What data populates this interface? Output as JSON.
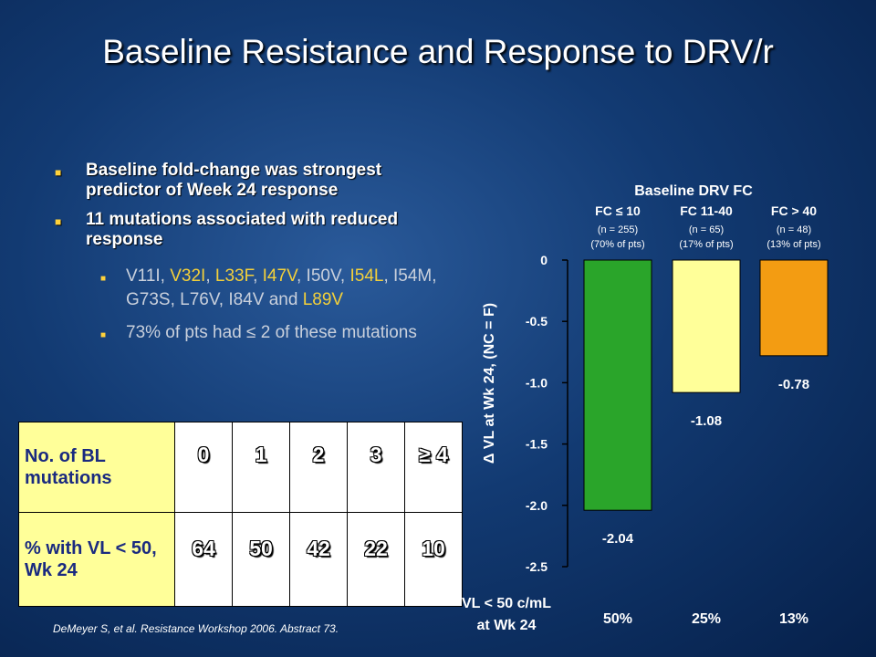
{
  "title": "Baseline Resistance and Response to DRV/r",
  "bullets": [
    {
      "text": "Baseline fold-change was strongest predictor of Week 24 response"
    },
    {
      "text": "11 mutations associated with reduced response"
    }
  ],
  "mutation_parts": [
    "V11I, ",
    "V32I",
    ", ",
    "L33F",
    ", ",
    "I47V",
    ", I50V, ",
    "I54L",
    ", I54M, G73S, L76V, I84V and ",
    "L89V"
  ],
  "sub_bullet_2": "73% of pts had ≤ 2 of these mutations",
  "table": {
    "row1_label": "No. of BL mutations",
    "row1": [
      "0",
      "1",
      "2",
      "3",
      "≥ 4"
    ],
    "row2_label": "% with VL < 50, Wk 24",
    "row2": [
      "64",
      "50",
      "42",
      "22",
      "10"
    ]
  },
  "footnote": "DeMeyer S, et al. Resistance Workshop 2006. Abstract 73.",
  "colors": {
    "bar1": "#2aa52a",
    "bar2": "#ffff99",
    "bar3": "#f39c12"
  },
  "chart_data": {
    "type": "bar",
    "title": "Baseline DRV FC",
    "ylabel": "Δ VL at Wk 24, (NC = F)",
    "ylim": [
      -2.5,
      0
    ],
    "yticks": [
      "0",
      "-0.5",
      "-1.0",
      "-1.5",
      "-2.0",
      "-2.5"
    ],
    "ytick_values": [
      0,
      -0.5,
      -1.0,
      -1.5,
      -2.0,
      -2.5
    ],
    "categories": [
      "FC ≤ 10",
      "FC 11-40",
      "FC > 40"
    ],
    "category_n": [
      "(n = 255)",
      "(n = 65)",
      "(n = 48)"
    ],
    "category_pct": [
      "(70% of pts)",
      "(17% of pts)",
      "(13% of pts)"
    ],
    "values": [
      -2.04,
      -1.08,
      -0.78
    ],
    "value_labels": [
      "-2.04",
      "-1.08",
      "-0.78"
    ],
    "bottom_label_line1": "VL < 50 c/mL",
    "bottom_label_line2": "at Wk 24",
    "bottom_values": [
      "50%",
      "25%",
      "13%"
    ]
  }
}
